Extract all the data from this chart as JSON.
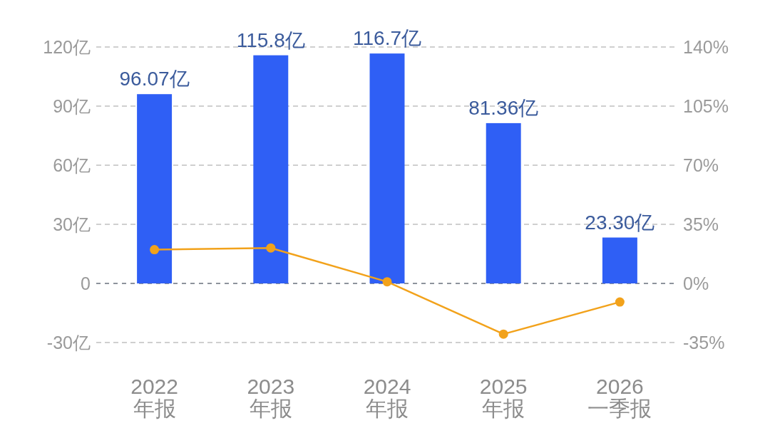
{
  "chart_data": {
    "type": "bar",
    "categories": [
      "2022\n年报",
      "2023\n年报",
      "2024\n年报",
      "2025\n年报",
      "2026\n一季报"
    ],
    "series": [
      {
        "color": "#2f5ff5",
        "values": [
          96.07,
          115.8,
          116.7,
          81.36,
          23.3
        ],
        "value_labels": [
          "96.07亿",
          "115.8亿",
          "116.7亿",
          "81.36亿",
          "23.30亿"
        ]
      },
      {
        "type": "line",
        "axis": "y2",
        "color": "#f2a21b",
        "values": [
          20,
          21,
          1,
          -30,
          -11
        ]
      }
    ],
    "ylim": [
      -30,
      120
    ],
    "yticks": [
      {
        "value": -30,
        "label": "-30亿"
      },
      0,
      {
        "value": 30,
        "label": "30亿"
      },
      {
        "value": 60,
        "label": "60亿"
      },
      {
        "value": 90,
        "label": "90亿"
      },
      {
        "value": 120,
        "label": "120亿"
      }
    ],
    "y2lim": [
      -35,
      140
    ],
    "y2ticks": [
      {
        "value": -35,
        "label": "-35%"
      },
      {
        "value": 0,
        "label": "0%"
      },
      {
        "value": 35,
        "label": "35%"
      },
      {
        "value": 70,
        "label": "70%"
      },
      {
        "value": 105,
        "label": "105%"
      },
      {
        "value": 140,
        "label": "140%"
      }
    ],
    "ref_lines": [
      {
        "axis": "y",
        "value": 0,
        "color": "#8d939c",
        "line_style": "dashed"
      }
    ],
    "grid": "y",
    "marker": "circle"
  }
}
